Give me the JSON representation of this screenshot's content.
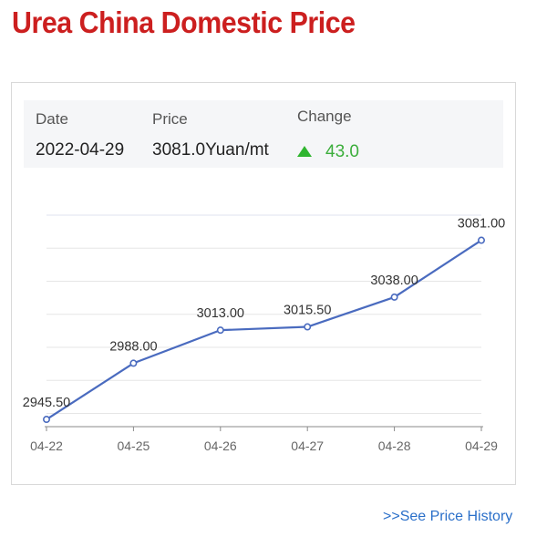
{
  "page": {
    "title": "Urea China Domestic Price",
    "history_link": ">>See Price History"
  },
  "summary": {
    "date_label": "Date",
    "price_label": "Price",
    "change_label": "Change",
    "date_value": "2022-04-29",
    "price_value": "3081.0Yuan/mt",
    "change_value": "43.0",
    "change_direction_icon": "triangle-up-icon"
  },
  "colors": {
    "title": "#cc1f1f",
    "line": "#4a6bbf",
    "change_up": "#2fb52f",
    "link": "#2a6fc9"
  },
  "chart_data": {
    "type": "line",
    "categories": [
      "04-22",
      "04-25",
      "04-26",
      "04-27",
      "04-28",
      "04-29"
    ],
    "series": [
      {
        "values": [
          2945.5,
          2988.0,
          3013.0,
          3015.5,
          3038.0,
          3081.0
        ],
        "labels": [
          "2945.50",
          "2988.00",
          "3013.00",
          "3015.50",
          "3038.00",
          "3081.00"
        ]
      }
    ],
    "title": "",
    "xlabel": "",
    "ylabel": "",
    "ylim": [
      2940,
      3100
    ],
    "grid": true,
    "y_axis_labels_shown": false
  }
}
